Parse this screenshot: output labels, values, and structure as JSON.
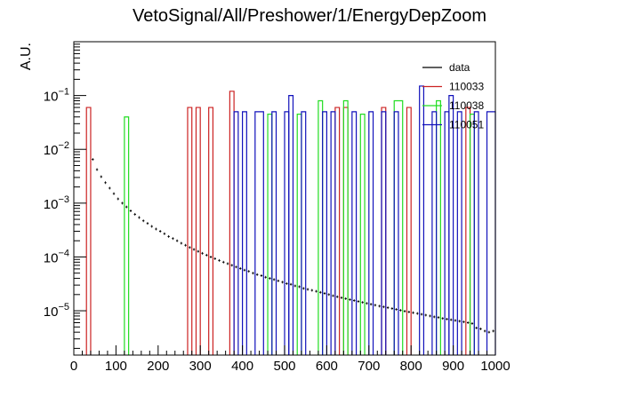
{
  "chart_data": {
    "type": "step-histogram",
    "title": "VetoSignal/All/Preshower/1/EnergyDepZoom",
    "xlabel": "",
    "ylabel": "A.U.",
    "xlim": [
      0,
      1000
    ],
    "ylim": [
      1.5e-06,
      1
    ],
    "yscale": "log",
    "xticks": [
      0,
      100,
      200,
      300,
      400,
      500,
      600,
      700,
      800,
      900,
      1000
    ],
    "ytick_labels": [
      {
        "base": "10",
        "exp": "−5",
        "value": 1e-05
      },
      {
        "base": "10",
        "exp": "−4",
        "value": 0.0001
      },
      {
        "base": "10",
        "exp": "−3",
        "value": 0.001
      },
      {
        "base": "10",
        "exp": "−2",
        "value": 0.01
      },
      {
        "base": "10",
        "exp": "−1",
        "value": 0.1
      }
    ],
    "grid": false,
    "legend_position": "top-right",
    "series": [
      {
        "name": "data",
        "color": "#000000",
        "style": "step",
        "points": [
          [
            45,
            0.0065
          ],
          [
            55,
            0.0042
          ],
          [
            65,
            0.0031
          ],
          [
            75,
            0.0024
          ],
          [
            85,
            0.0019
          ],
          [
            95,
            0.0015
          ],
          [
            105,
            0.0012
          ],
          [
            115,
            0.001
          ],
          [
            125,
            0.00085
          ],
          [
            135,
            0.00072
          ],
          [
            145,
            0.00062
          ],
          [
            155,
            0.00054
          ],
          [
            165,
            0.00047
          ],
          [
            175,
            0.00042
          ],
          [
            185,
            0.00037
          ],
          [
            195,
            0.00033
          ],
          [
            205,
            0.0003
          ],
          [
            215,
            0.00027
          ],
          [
            225,
            0.00024
          ],
          [
            235,
            0.00022
          ],
          [
            245,
            0.0002
          ],
          [
            255,
            0.00018
          ],
          [
            265,
            0.000165
          ],
          [
            275,
            0.00015
          ],
          [
            285,
            0.000138
          ],
          [
            295,
            0.000127
          ],
          [
            305,
            0.000117
          ],
          [
            315,
            0.000108
          ],
          [
            325,
            0.0001
          ],
          [
            335,
            9.3e-05
          ],
          [
            345,
            8.6e-05
          ],
          [
            355,
            8e-05
          ],
          [
            365,
            7.5e-05
          ],
          [
            375,
            7e-05
          ],
          [
            385,
            6.5e-05
          ],
          [
            395,
            6.1e-05
          ],
          [
            405,
            5.7e-05
          ],
          [
            415,
            5.4e-05
          ],
          [
            425,
            5e-05
          ],
          [
            435,
            4.7e-05
          ],
          [
            445,
            4.5e-05
          ],
          [
            455,
            4.2e-05
          ],
          [
            465,
            4e-05
          ],
          [
            475,
            3.8e-05
          ],
          [
            485,
            3.6e-05
          ],
          [
            495,
            3.4e-05
          ],
          [
            505,
            3.2e-05
          ],
          [
            515,
            3.1e-05
          ],
          [
            525,
            2.9e-05
          ],
          [
            535,
            2.8e-05
          ],
          [
            545,
            2.6e-05
          ],
          [
            555,
            2.5e-05
          ],
          [
            565,
            2.4e-05
          ],
          [
            575,
            2.3e-05
          ],
          [
            585,
            2.2e-05
          ],
          [
            595,
            2.1e-05
          ],
          [
            605,
            2e-05
          ],
          [
            615,
            1.9e-05
          ],
          [
            625,
            1.82e-05
          ],
          [
            635,
            1.75e-05
          ],
          [
            645,
            1.68e-05
          ],
          [
            655,
            1.61e-05
          ],
          [
            665,
            1.55e-05
          ],
          [
            675,
            1.49e-05
          ],
          [
            685,
            1.43e-05
          ],
          [
            695,
            1.37e-05
          ],
          [
            705,
            1.32e-05
          ],
          [
            715,
            1.27e-05
          ],
          [
            725,
            1.22e-05
          ],
          [
            735,
            1.18e-05
          ],
          [
            745,
            1.14e-05
          ],
          [
            755,
            1.1e-05
          ],
          [
            765,
            1.06e-05
          ],
          [
            775,
            1.02e-05
          ],
          [
            785,
            9.8e-06
          ],
          [
            795,
            9.5e-06
          ],
          [
            805,
            9.2e-06
          ],
          [
            815,
            8.9e-06
          ],
          [
            825,
            8.6e-06
          ],
          [
            835,
            8.3e-06
          ],
          [
            845,
            8e-06
          ],
          [
            855,
            7.7e-06
          ],
          [
            865,
            7.5e-06
          ],
          [
            875,
            7.2e-06
          ],
          [
            885,
            7e-06
          ],
          [
            895,
            6.8e-06
          ],
          [
            905,
            6.6e-06
          ],
          [
            915,
            6.4e-06
          ],
          [
            925,
            6.2e-06
          ],
          [
            935,
            6e-06
          ],
          [
            945,
            5.8e-06
          ],
          [
            955,
            4.8e-06
          ],
          [
            965,
            4.6e-06
          ],
          [
            975,
            4.2e-06
          ],
          [
            985,
            4e-06
          ],
          [
            995,
            4.2e-06
          ]
        ]
      },
      {
        "name": "110033",
        "color": "#cc2222",
        "style": "bars",
        "bars": [
          [
            30,
            40,
            0.06
          ],
          [
            270,
            280,
            0.06
          ],
          [
            290,
            300,
            0.06
          ],
          [
            320,
            330,
            0.06
          ],
          [
            370,
            380,
            0.12
          ],
          [
            620,
            630,
            0.06
          ],
          [
            640,
            650,
            0.06
          ],
          [
            730,
            740,
            0.06
          ],
          [
            790,
            800,
            0.06
          ],
          [
            930,
            940,
            0.06
          ]
        ]
      },
      {
        "name": "110038",
        "color": "#22dd22",
        "style": "bars",
        "bars": [
          [
            120,
            130,
            0.04
          ],
          [
            460,
            470,
            0.045
          ],
          [
            530,
            540,
            0.045
          ],
          [
            580,
            590,
            0.08
          ],
          [
            640,
            650,
            0.08
          ],
          [
            680,
            690,
            0.045
          ],
          [
            760,
            780,
            0.08
          ],
          [
            860,
            870,
            0.08
          ],
          [
            940,
            950,
            0.045
          ]
        ]
      },
      {
        "name": "110051",
        "color": "#1111bb",
        "style": "bars",
        "bars": [
          [
            380,
            390,
            0.05
          ],
          [
            400,
            410,
            0.05
          ],
          [
            430,
            450,
            0.05
          ],
          [
            470,
            480,
            0.05
          ],
          [
            500,
            510,
            0.05
          ],
          [
            510,
            520,
            0.1
          ],
          [
            540,
            550,
            0.05
          ],
          [
            590,
            600,
            0.05
          ],
          [
            610,
            620,
            0.05
          ],
          [
            660,
            670,
            0.05
          ],
          [
            700,
            710,
            0.05
          ],
          [
            730,
            740,
            0.05
          ],
          [
            760,
            770,
            0.05
          ],
          [
            820,
            830,
            0.15
          ],
          [
            850,
            860,
            0.05
          ],
          [
            880,
            890,
            0.05
          ],
          [
            890,
            900,
            0.1
          ],
          [
            910,
            920,
            0.05
          ],
          [
            950,
            960,
            0.05
          ],
          [
            980,
            1000,
            0.05
          ]
        ]
      }
    ]
  }
}
